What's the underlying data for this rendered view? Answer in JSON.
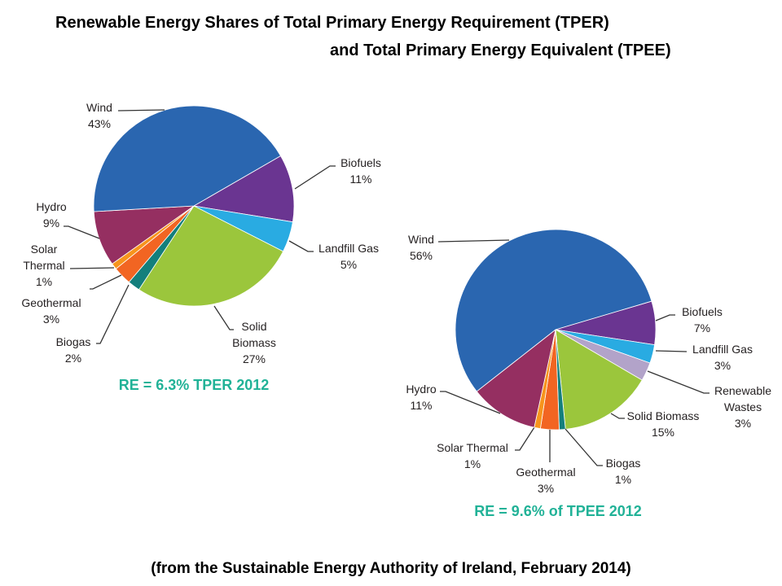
{
  "title_line1": "Renewable Energy Shares of Total Primary Energy Requirement (TPER)",
  "title_line2": "and Total Primary Energy Equivalent (TPEE)",
  "footer": "(from the Sustainable Energy Authority of Ireland, February 2014)",
  "chart_data": [
    {
      "type": "pie",
      "subtitle": "RE = 6.3% TPER 2012",
      "slices": [
        {
          "label": "Biofuels",
          "value": 11,
          "value_label": "11%",
          "color": "#6a3591"
        },
        {
          "label": "Landfill Gas",
          "value": 5,
          "value_label": "5%",
          "color": "#29abe2"
        },
        {
          "label": "Solid Biomass",
          "value": 27,
          "value_label": "27%",
          "color": "#9bc63c"
        },
        {
          "label": "Biogas",
          "value": 2,
          "value_label": "2%",
          "color": "#147f7c"
        },
        {
          "label": "Geothermal",
          "value": 3,
          "value_label": "3%",
          "color": "#f26522"
        },
        {
          "label": "Solar Thermal",
          "value": 1,
          "value_label": "1%",
          "color": "#f7941d"
        },
        {
          "label": "Hydro",
          "value": 9,
          "value_label": "9%",
          "color": "#952f61"
        },
        {
          "label": "Wind",
          "value": 43,
          "value_label": "43%",
          "color": "#2a66b0"
        }
      ]
    },
    {
      "type": "pie",
      "subtitle": "RE = 9.6% of TPEE 2012",
      "slices": [
        {
          "label": "Biofuels",
          "value": 7,
          "value_label": "7%",
          "color": "#6a3591"
        },
        {
          "label": "Landfill Gas",
          "value": 3,
          "value_label": "3%",
          "color": "#29abe2"
        },
        {
          "label": "Renewable Wastes",
          "value": 3,
          "value_label": "3%",
          "color": "#b2a3c9"
        },
        {
          "label": "Solid Biomass",
          "value": 15,
          "value_label": "15%",
          "color": "#9bc63c"
        },
        {
          "label": "Biogas",
          "value": 1,
          "value_label": "1%",
          "color": "#147f7c"
        },
        {
          "label": "Geothermal",
          "value": 3,
          "value_label": "3%",
          "color": "#f26522"
        },
        {
          "label": "Solar Thermal",
          "value": 1,
          "value_label": "1%",
          "color": "#f7941d"
        },
        {
          "label": "Hydro",
          "value": 11,
          "value_label": "11%",
          "color": "#952f61"
        },
        {
          "label": "Wind",
          "value": 56,
          "value_label": "56%",
          "color": "#2a66b0"
        }
      ]
    }
  ]
}
